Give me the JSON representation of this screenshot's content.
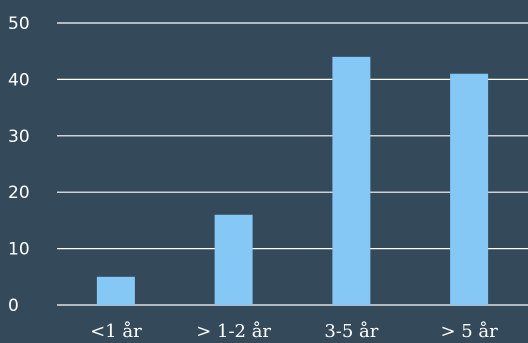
{
  "chart_data": {
    "type": "bar",
    "title": "",
    "xlabel": "",
    "ylabel": "",
    "categories": [
      "<1 år",
      "> 1-2 år",
      "3-5 år",
      "> 5 år"
    ],
    "values": [
      5,
      16,
      44,
      41
    ],
    "ylim": [
      0,
      50
    ],
    "yticks": [
      0,
      10,
      20,
      30,
      40,
      50
    ],
    "grid": true,
    "legend": "none",
    "colors": {
      "background": "#34495a",
      "bar": "#85c8f5",
      "gridline": "#ffffff",
      "text": "#ffffff"
    }
  }
}
